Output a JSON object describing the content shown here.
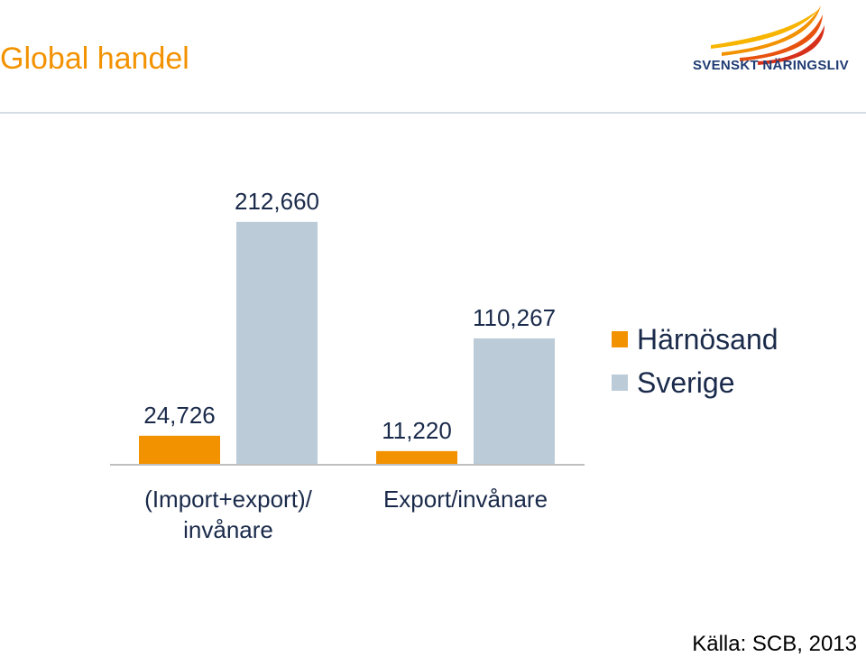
{
  "header": {
    "title": "Global handel",
    "logo_text": "SVENSKT NÄRINGSLIV"
  },
  "source": "Källa: SCB, 2013",
  "colors": {
    "title": "#f39200",
    "harnosand": "#f39200",
    "sverige": "#bccbd8",
    "axis": "#bfbfbf",
    "text": "#1a2a4a"
  },
  "chart_data": {
    "type": "bar",
    "categories": [
      "(Import+export)/\ninvånare",
      "Export/invånare"
    ],
    "series": [
      {
        "name": "Härnösand",
        "values": [
          24726,
          11220
        ],
        "labels": [
          "24,726",
          "11,220"
        ]
      },
      {
        "name": "Sverige",
        "values": [
          212660,
          110267
        ],
        "labels": [
          "212,660",
          "110,267"
        ]
      }
    ],
    "ylim": [
      0,
      230000
    ],
    "grid": false,
    "legend": "right"
  }
}
